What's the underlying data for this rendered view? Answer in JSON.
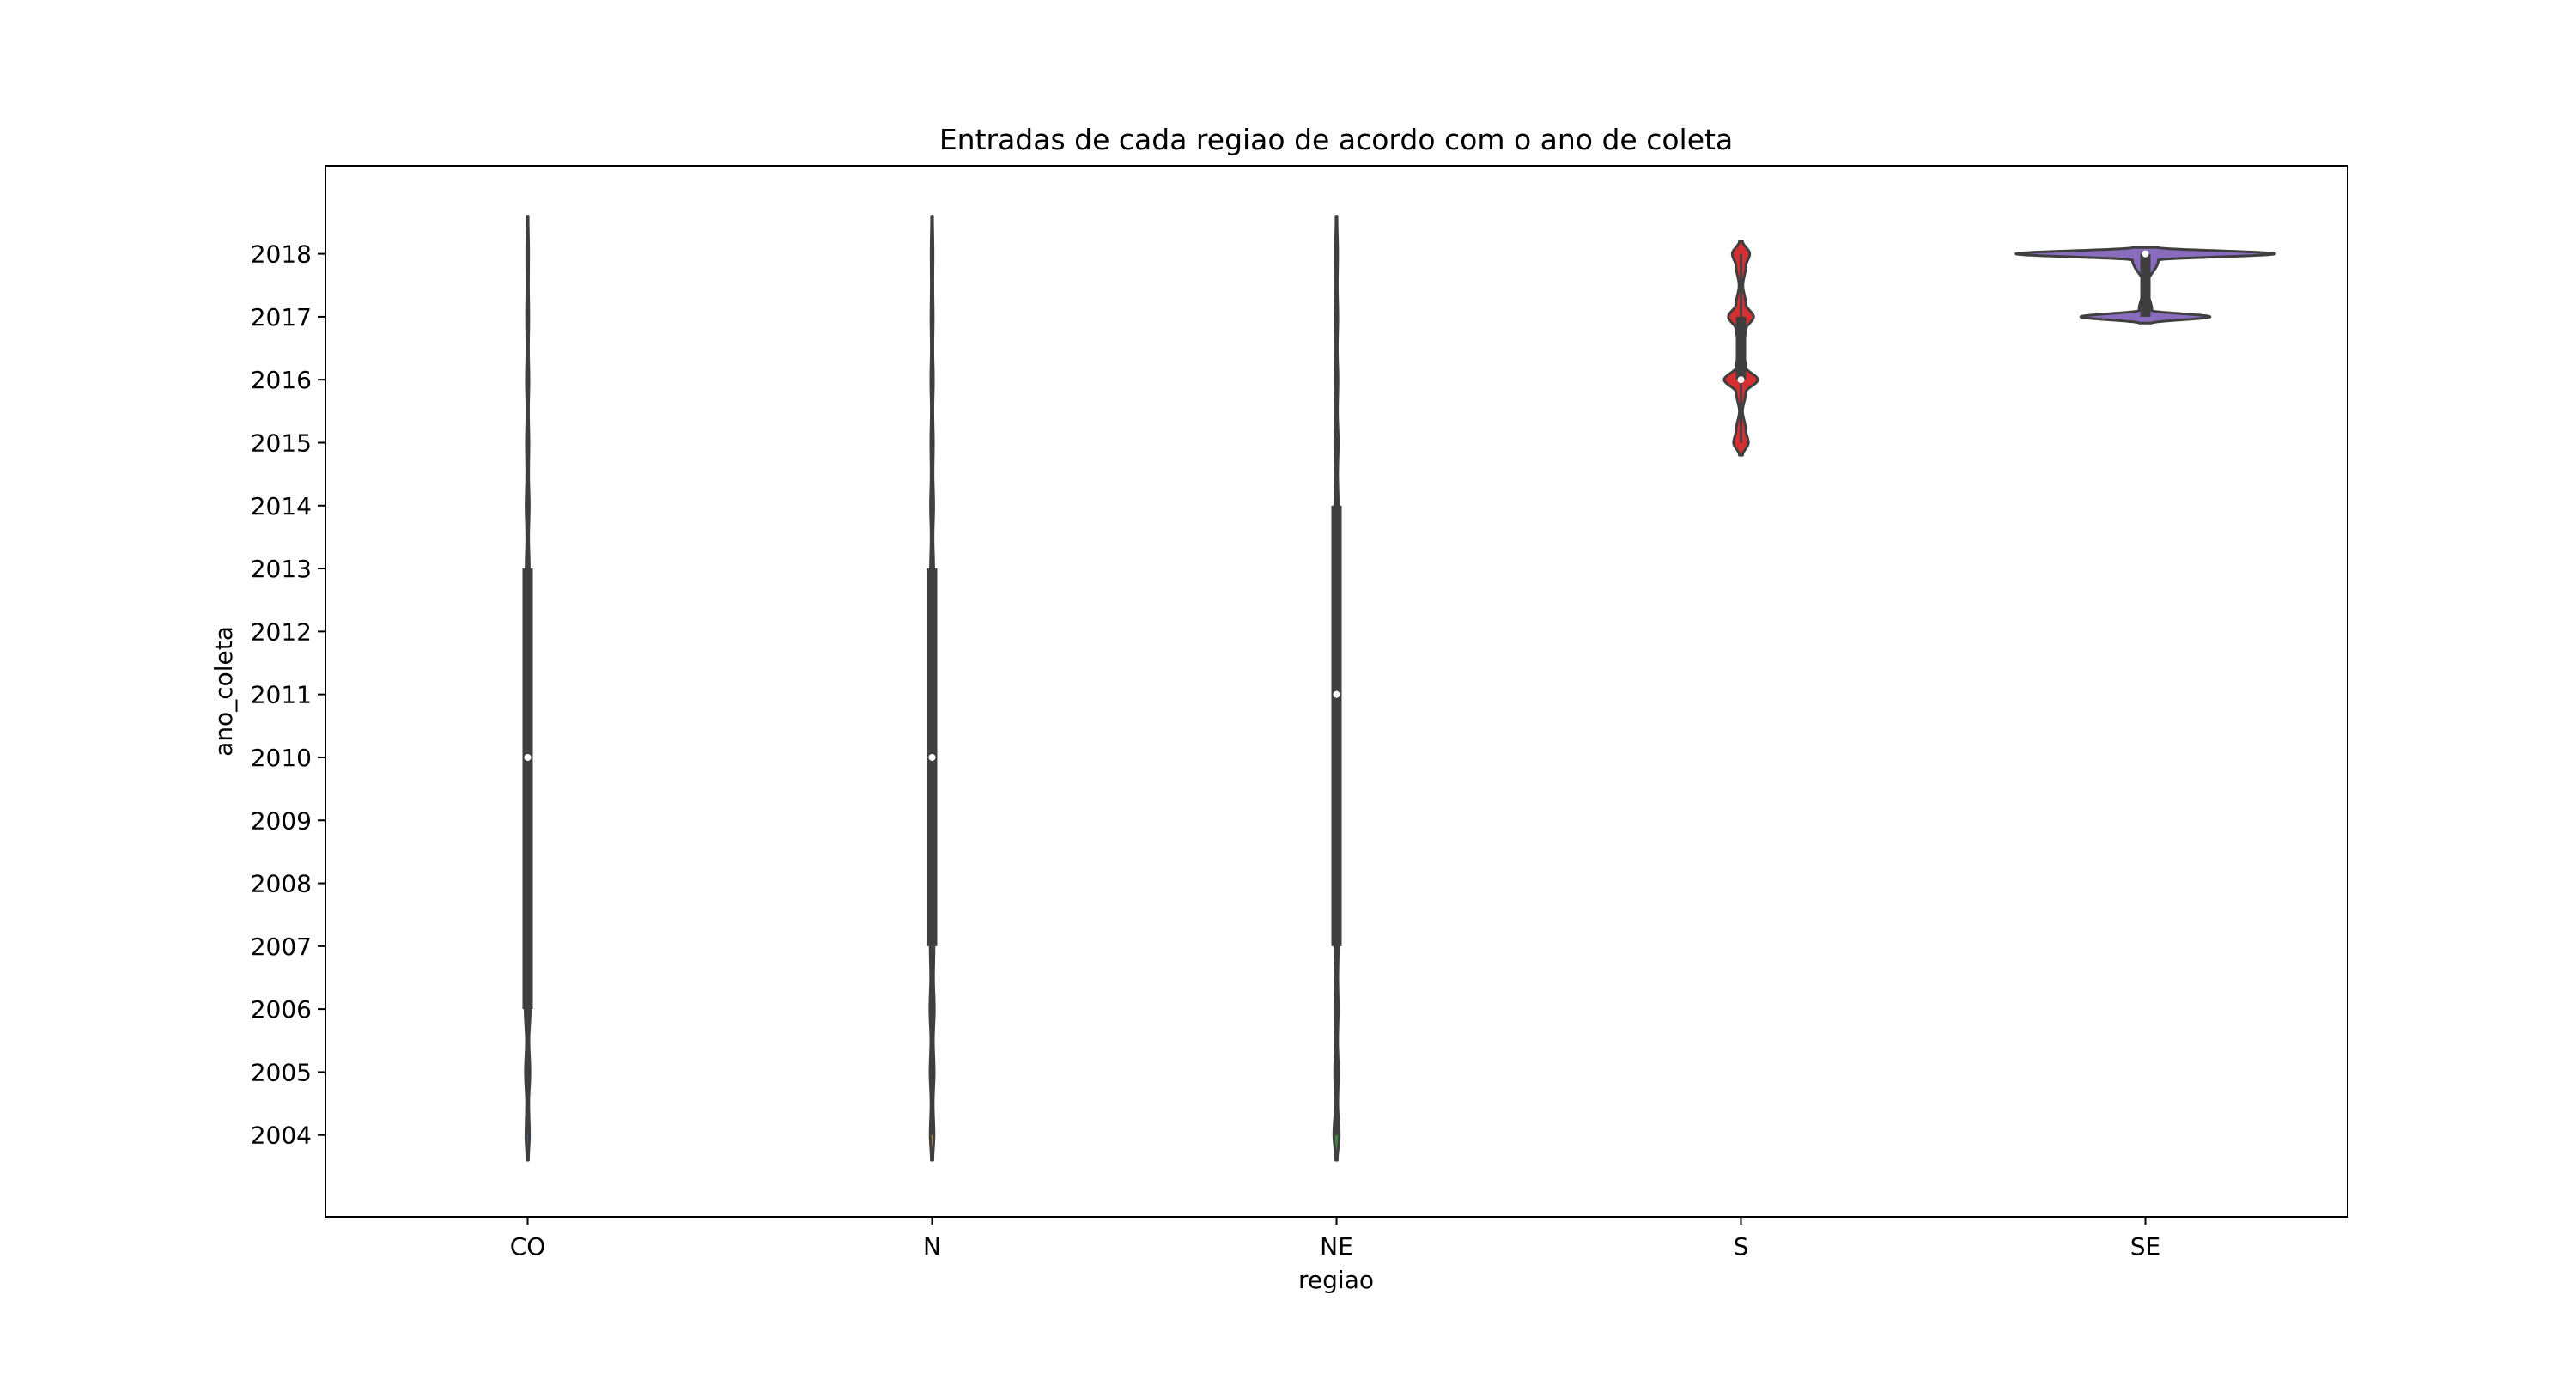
{
  "chart_data": {
    "type": "violin",
    "title": "Entradas de cada regiao de acordo com o ano de coleta",
    "xlabel": "regiao",
    "ylabel": "ano_coleta",
    "categories": [
      "CO",
      "N",
      "NE",
      "S",
      "SE"
    ],
    "yticks": [
      2004,
      2005,
      2006,
      2007,
      2008,
      2009,
      2010,
      2011,
      2012,
      2013,
      2014,
      2015,
      2016,
      2017,
      2018
    ],
    "ylim": [
      2002.7,
      2019.4
    ],
    "grid": false,
    "legend": "none",
    "max_half_width": 0.4,
    "colors": {
      "CO": "#3a5e8c",
      "N": "#c07a2c",
      "NE": "#3a8a3a",
      "S": "#d62f31",
      "SE": "#8a6cbf",
      "outline": "#3f3f3f",
      "box": "#3f3f3f",
      "median": "#ffffff"
    },
    "violins": [
      {
        "category": "CO",
        "range": [
          2003.6,
          2018.6
        ],
        "q1": 2006,
        "median": 2010,
        "q3": 2013,
        "whisker": [
          2004,
          2018
        ],
        "density": [
          [
            2003.6,
            0.005
          ],
          [
            2004,
            0.011
          ],
          [
            2004.5,
            0.007
          ],
          [
            2005,
            0.014
          ],
          [
            2005.5,
            0.008
          ],
          [
            2006,
            0.016
          ],
          [
            2006.5,
            0.009
          ],
          [
            2007,
            0.013
          ],
          [
            2008,
            0.012
          ],
          [
            2009,
            0.011
          ],
          [
            2010,
            0.012
          ],
          [
            2011,
            0.011
          ],
          [
            2012,
            0.011
          ],
          [
            2013,
            0.01
          ],
          [
            2013.5,
            0.006
          ],
          [
            2014,
            0.01
          ],
          [
            2014.5,
            0.006
          ],
          [
            2015,
            0.008
          ],
          [
            2015.5,
            0.005
          ],
          [
            2016,
            0.008
          ],
          [
            2016.5,
            0.005
          ],
          [
            2017,
            0.007
          ],
          [
            2017.5,
            0.005
          ],
          [
            2018,
            0.006
          ],
          [
            2018.6,
            0.003
          ]
        ]
      },
      {
        "category": "N",
        "range": [
          2003.6,
          2018.6
        ],
        "q1": 2007,
        "median": 2010,
        "q3": 2013,
        "whisker": [
          2004,
          2018
        ],
        "density": [
          [
            2003.6,
            0.005
          ],
          [
            2004,
            0.012
          ],
          [
            2004.5,
            0.007
          ],
          [
            2005,
            0.013
          ],
          [
            2005.5,
            0.008
          ],
          [
            2006,
            0.014
          ],
          [
            2006.5,
            0.009
          ],
          [
            2007,
            0.012
          ],
          [
            2008,
            0.011
          ],
          [
            2009,
            0.011
          ],
          [
            2010,
            0.012
          ],
          [
            2011,
            0.011
          ],
          [
            2012,
            0.011
          ],
          [
            2013,
            0.01
          ],
          [
            2013.5,
            0.006
          ],
          [
            2014,
            0.01
          ],
          [
            2014.5,
            0.006
          ],
          [
            2015,
            0.008
          ],
          [
            2015.5,
            0.005
          ],
          [
            2016,
            0.008
          ],
          [
            2016.5,
            0.005
          ],
          [
            2017,
            0.007
          ],
          [
            2017.5,
            0.005
          ],
          [
            2018,
            0.006
          ],
          [
            2018.6,
            0.003
          ]
        ]
      },
      {
        "category": "NE",
        "range": [
          2003.6,
          2018.6
        ],
        "q1": 2007,
        "median": 2011,
        "q3": 2014,
        "whisker": [
          2004,
          2018
        ],
        "density": [
          [
            2003.6,
            0.005
          ],
          [
            2004,
            0.017
          ],
          [
            2004.5,
            0.008
          ],
          [
            2005,
            0.012
          ],
          [
            2005.5,
            0.007
          ],
          [
            2006,
            0.011
          ],
          [
            2006.5,
            0.008
          ],
          [
            2007,
            0.011
          ],
          [
            2008,
            0.011
          ],
          [
            2009,
            0.011
          ],
          [
            2010,
            0.011
          ],
          [
            2011,
            0.011
          ],
          [
            2012,
            0.011
          ],
          [
            2013,
            0.011
          ],
          [
            2014,
            0.011
          ],
          [
            2014.5,
            0.007
          ],
          [
            2015,
            0.011
          ],
          [
            2015.5,
            0.006
          ],
          [
            2016,
            0.009
          ],
          [
            2016.5,
            0.005
          ],
          [
            2017,
            0.008
          ],
          [
            2017.5,
            0.005
          ],
          [
            2018,
            0.007
          ],
          [
            2018.6,
            0.003
          ]
        ]
      },
      {
        "category": "S",
        "range": [
          2014.8,
          2018.2
        ],
        "q1": 2016,
        "median": 2016,
        "q3": 2017,
        "whisker": [
          2015,
          2018
        ],
        "density": [
          [
            2014.8,
            0.01
          ],
          [
            2015,
            0.046
          ],
          [
            2015.2,
            0.03
          ],
          [
            2015.5,
            0.01
          ],
          [
            2015.8,
            0.03
          ],
          [
            2016,
            0.104
          ],
          [
            2016.2,
            0.03
          ],
          [
            2016.5,
            0.012
          ],
          [
            2016.8,
            0.03
          ],
          [
            2017,
            0.078
          ],
          [
            2017.2,
            0.03
          ],
          [
            2017.5,
            0.012
          ],
          [
            2017.8,
            0.03
          ],
          [
            2018,
            0.054
          ],
          [
            2018.2,
            0.01
          ]
        ]
      },
      {
        "category": "SE",
        "range": [
          2016.9,
          2018.1
        ],
        "q1": 2017,
        "median": 2018,
        "q3": 2018,
        "whisker": [
          2017,
          2018
        ],
        "density": [
          [
            2016.9,
            0.04
          ],
          [
            2017,
            0.4
          ],
          [
            2017.1,
            0.04
          ],
          [
            2017.5,
            0.006
          ],
          [
            2017.9,
            0.08
          ],
          [
            2018,
            0.8
          ],
          [
            2018.1,
            0.08
          ]
        ]
      }
    ]
  }
}
